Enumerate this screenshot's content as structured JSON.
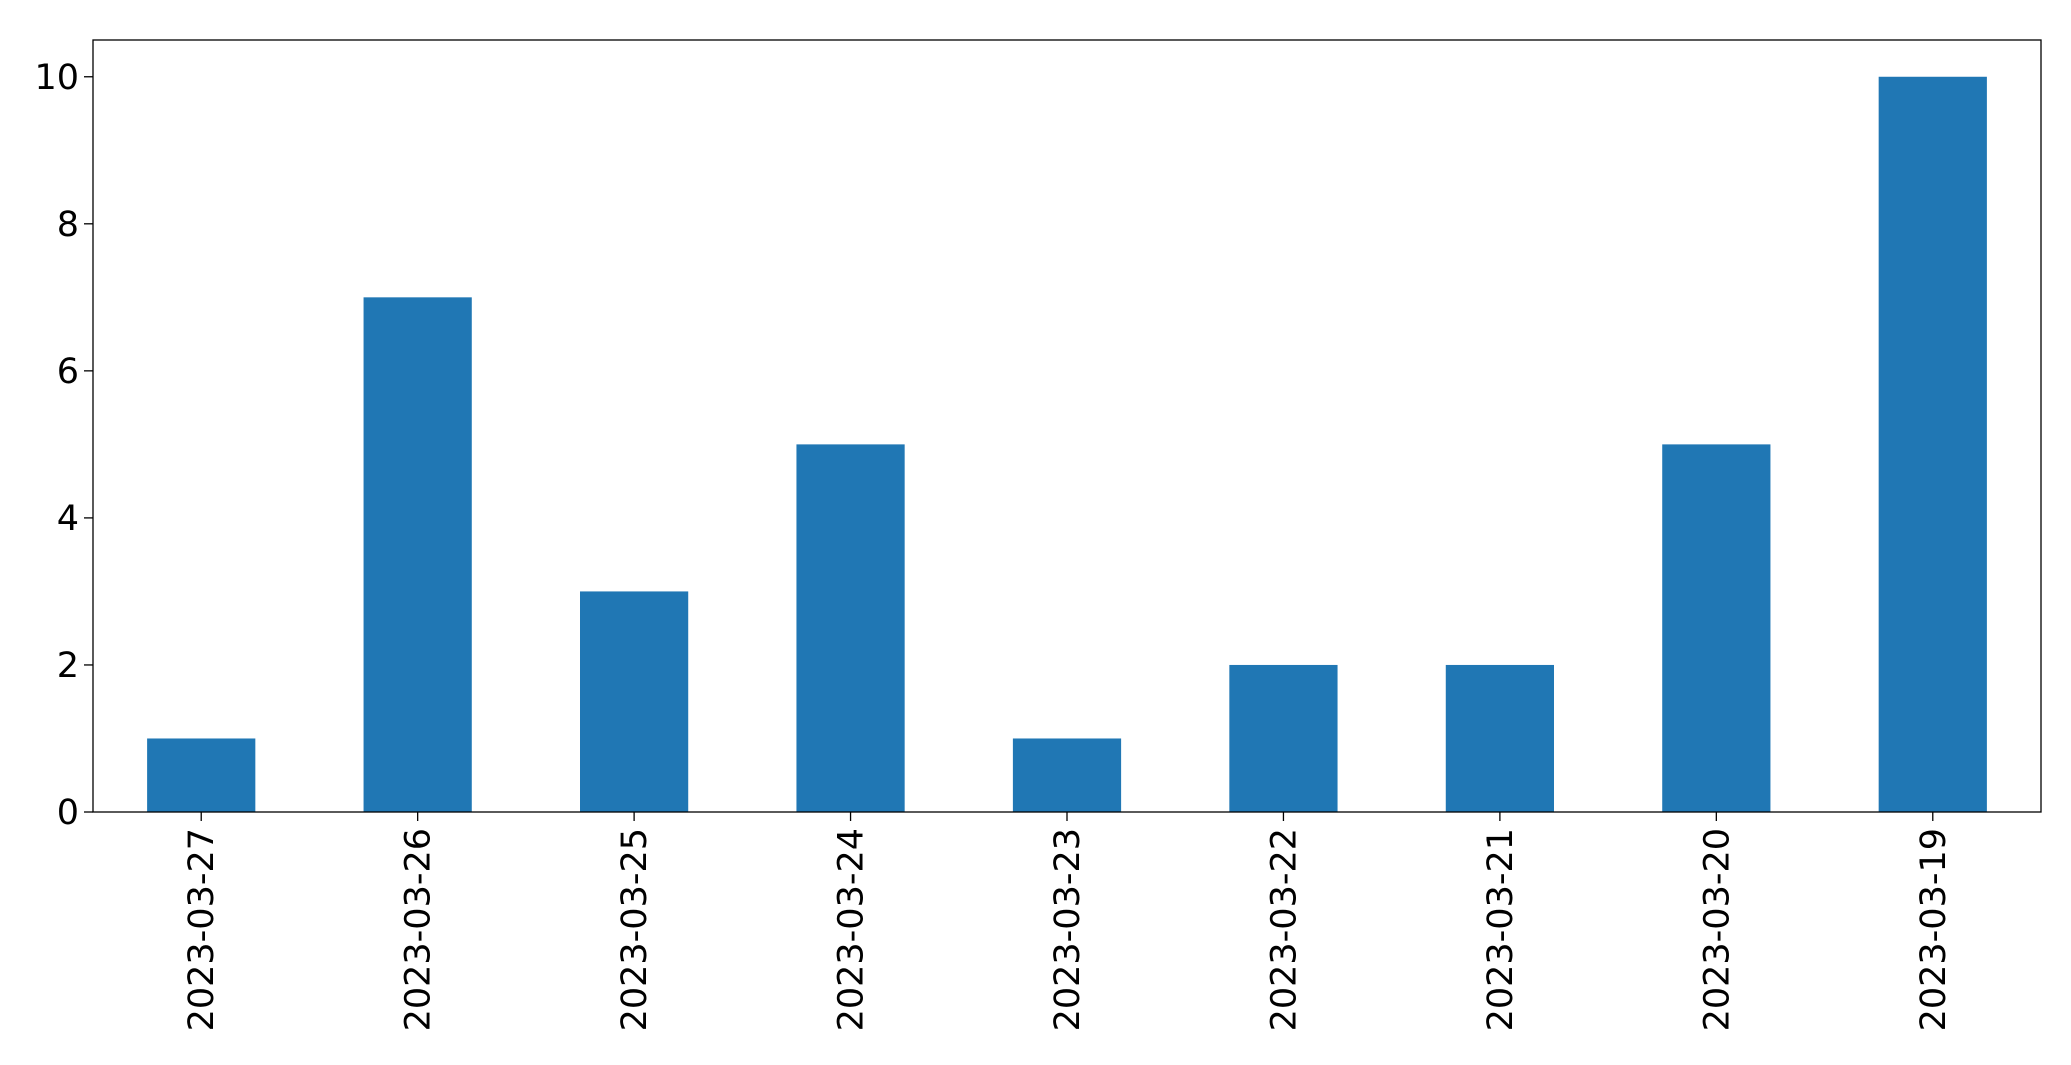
{
  "chart_data": {
    "type": "bar",
    "title": "",
    "xlabel": "",
    "ylabel": "",
    "categories": [
      "2023-03-27",
      "2023-03-26",
      "2023-03-25",
      "2023-03-24",
      "2023-03-23",
      "2023-03-22",
      "2023-03-21",
      "2023-03-20",
      "2023-03-19"
    ],
    "values": [
      1,
      7,
      3,
      5,
      1,
      2,
      2,
      5,
      10
    ],
    "ylim": [
      0,
      10.5
    ],
    "yticks": [
      0,
      2,
      4,
      6,
      8,
      10
    ],
    "grid": false,
    "legend": "none",
    "bar_color": "#2077b4"
  }
}
